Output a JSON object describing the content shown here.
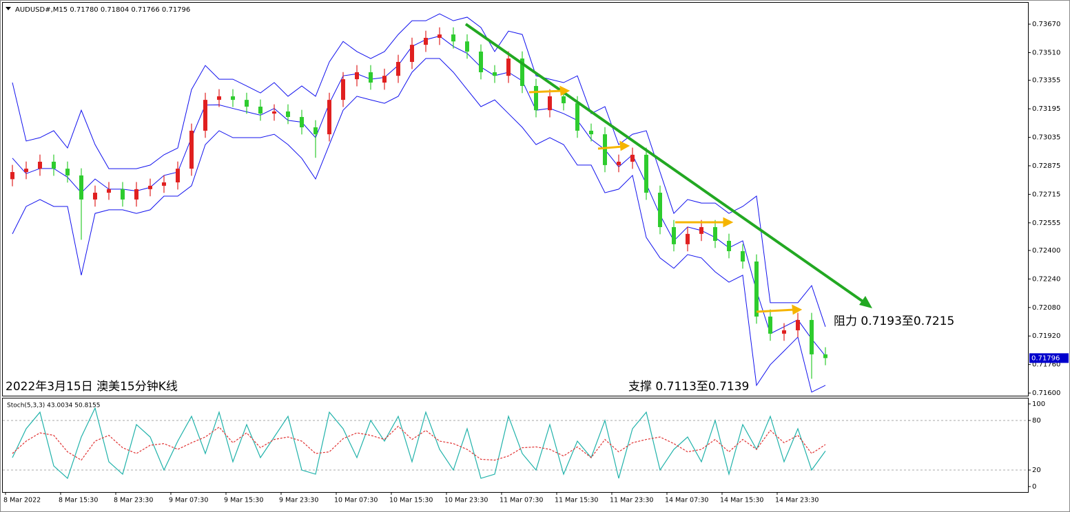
{
  "chart_data": [
    {
      "type": "candlestick",
      "title": "AUDUSD#,M15  0.71780 0.71804 0.71766 0.71796",
      "categories": [
        "8 Mar 2022",
        null,
        null,
        null,
        "8 Mar 15:30",
        null,
        null,
        null,
        "8 Mar 23:30",
        null,
        null,
        null,
        "9 Mar 07:30",
        null,
        null,
        null,
        "9 Mar 15:30",
        null,
        null,
        null,
        "9 Mar 23:30",
        null,
        null,
        null,
        "10 Mar 07:30",
        null,
        null,
        null,
        "10 Mar 15:30",
        null,
        null,
        null,
        "10 Mar 23:30",
        null,
        null,
        null,
        "11 Mar 07:30",
        null,
        null,
        null,
        "11 Mar 15:30",
        null,
        null,
        null,
        "11 Mar 23:30",
        null,
        null,
        null,
        "14 Mar 07:30",
        null,
        null,
        null,
        "14 Mar 15:30",
        null,
        null,
        null,
        "14 Mar 23:30",
        null,
        null,
        null
      ],
      "open": [
        0.728,
        0.7284,
        0.72859,
        0.72898,
        0.72859,
        0.72821,
        0.72686,
        0.72724,
        0.72744,
        0.72686,
        0.72744,
        0.72763,
        0.72782,
        0.72859,
        0.73072,
        0.73245,
        0.73265,
        0.73245,
        0.73207,
        0.73168,
        0.7318,
        0.73149,
        0.73091,
        0.73052,
        0.73245,
        0.73361,
        0.734,
        0.73342,
        0.7338,
        0.73458,
        0.73554,
        0.73593,
        0.73612,
        0.73573,
        0.73516,
        0.734,
        0.7338,
        0.73477,
        0.73323,
        0.73187,
        0.73265,
        0.73226,
        0.73072,
        0.73052,
        0.72879,
        0.72898,
        0.72937,
        0.72724,
        0.72531,
        0.72435,
        0.72493,
        0.72531,
        0.72454,
        0.72396,
        0.72338,
        0.72029,
        0.71933,
        0.71952,
        0.7201,
        0.71817
      ],
      "high": [
        0.7288,
        0.72899,
        0.72938,
        0.72938,
        0.72899,
        0.72861,
        0.72764,
        0.72784,
        0.72784,
        0.72784,
        0.72803,
        0.72822,
        0.72899,
        0.73112,
        0.73285,
        0.73305,
        0.73305,
        0.73285,
        0.73247,
        0.7322,
        0.7322,
        0.73189,
        0.73131,
        0.73285,
        0.73401,
        0.7344,
        0.7344,
        0.7342,
        0.73498,
        0.73594,
        0.73633,
        0.73652,
        0.73652,
        0.73613,
        0.73556,
        0.7344,
        0.73517,
        0.73517,
        0.73363,
        0.73305,
        0.73305,
        0.73266,
        0.73112,
        0.73092,
        0.72938,
        0.72977,
        0.72977,
        0.72764,
        0.72571,
        0.72533,
        0.72571,
        0.72571,
        0.72494,
        0.72436,
        0.72378,
        0.72069,
        0.71992,
        0.7205,
        0.7205,
        0.71857
      ],
      "low": [
        0.7276,
        0.728,
        0.72819,
        0.72819,
        0.72781,
        0.7246,
        0.72646,
        0.72684,
        0.72646,
        0.72646,
        0.72704,
        0.72723,
        0.72742,
        0.72819,
        0.73032,
        0.73205,
        0.73205,
        0.73167,
        0.73128,
        0.73128,
        0.73109,
        0.73051,
        0.7292,
        0.73012,
        0.73205,
        0.73321,
        0.73302,
        0.73302,
        0.7334,
        0.73418,
        0.73514,
        0.73553,
        0.73533,
        0.73476,
        0.7336,
        0.7334,
        0.7334,
        0.73283,
        0.73147,
        0.73147,
        0.73186,
        0.73032,
        0.73012,
        0.72839,
        0.72839,
        0.72858,
        0.72684,
        0.72491,
        0.72395,
        0.72395,
        0.72453,
        0.72414,
        0.72356,
        0.72298,
        0.71989,
        0.71893,
        0.71893,
        0.71912,
        0.7168,
        0.71756
      ],
      "close": [
        0.7284,
        0.72859,
        0.72898,
        0.72859,
        0.72821,
        0.72686,
        0.72724,
        0.72744,
        0.72686,
        0.72744,
        0.72763,
        0.72782,
        0.72859,
        0.73072,
        0.73245,
        0.73265,
        0.73245,
        0.73207,
        0.73168,
        0.7318,
        0.73149,
        0.73091,
        0.73052,
        0.73245,
        0.73361,
        0.734,
        0.73342,
        0.7338,
        0.73458,
        0.73554,
        0.73593,
        0.73612,
        0.73573,
        0.73516,
        0.734,
        0.7338,
        0.73477,
        0.73323,
        0.73187,
        0.73265,
        0.73226,
        0.73072,
        0.73052,
        0.72879,
        0.72898,
        0.72937,
        0.72724,
        0.72531,
        0.72435,
        0.72493,
        0.72531,
        0.72454,
        0.72396,
        0.72338,
        0.72029,
        0.71933,
        0.71952,
        0.7201,
        0.71817,
        0.71796
      ],
      "up_color": "#e02020",
      "down_color": "#2ecc2e",
      "bollinger": {
        "color": "#1010ee",
        "upper": [
          0.73342,
          0.73014,
          0.73033,
          0.73072,
          0.72975,
          0.73187,
          0.72994,
          0.72859,
          0.72859,
          0.72859,
          0.72879,
          0.72937,
          0.72975,
          0.73303,
          0.73438,
          0.73361,
          0.73361,
          0.73323,
          0.73284,
          0.73342,
          0.73265,
          0.73323,
          0.73265,
          0.73458,
          0.73573,
          0.73516,
          0.73477,
          0.73516,
          0.73612,
          0.73689,
          0.73689,
          0.73728,
          0.73689,
          0.73709,
          0.73651,
          0.73516,
          0.73631,
          0.73612,
          0.7338,
          0.73361,
          0.73342,
          0.7338,
          0.73168,
          0.73207,
          0.72994,
          0.73052,
          0.73072,
          0.7284,
          0.72608,
          0.72686,
          0.72666,
          0.72666,
          0.72608,
          0.72647,
          0.72705,
          0.72107,
          0.72107,
          0.72107,
          0.72203,
          0.71972
        ],
        "middle": [
          0.72918,
          0.72831,
          0.7286,
          0.7286,
          0.72811,
          0.72724,
          0.72801,
          0.72744,
          0.72744,
          0.72734,
          0.72754,
          0.72821,
          0.7284,
          0.73033,
          0.73216,
          0.73217,
          0.73197,
          0.73178,
          0.73159,
          0.73197,
          0.7313,
          0.7312,
          0.73033,
          0.73226,
          0.7338,
          0.73391,
          0.73361,
          0.73371,
          0.73439,
          0.73545,
          0.73583,
          0.73603,
          0.73545,
          0.73506,
          0.73429,
          0.73381,
          0.734,
          0.73352,
          0.73187,
          0.73197,
          0.73168,
          0.7313,
          0.73024,
          0.72966,
          0.72869,
          0.72937,
          0.72773,
          0.72599,
          0.72454,
          0.72532,
          0.72512,
          0.72473,
          0.72415,
          0.72454,
          0.72174,
          0.71933,
          0.71972,
          0.72011,
          0.71904,
          0.71808
        ],
        "lower": [
          0.72493,
          0.72647,
          0.72686,
          0.72647,
          0.72647,
          0.72261,
          0.72608,
          0.72628,
          0.72628,
          0.72608,
          0.72628,
          0.72705,
          0.72705,
          0.72763,
          0.72994,
          0.73072,
          0.73033,
          0.73033,
          0.73033,
          0.73052,
          0.72994,
          0.72917,
          0.72801,
          0.72994,
          0.73187,
          0.73265,
          0.73245,
          0.73226,
          0.73265,
          0.734,
          0.73477,
          0.73477,
          0.734,
          0.73303,
          0.73207,
          0.73245,
          0.73168,
          0.73091,
          0.72994,
          0.73033,
          0.72994,
          0.72879,
          0.72879,
          0.72724,
          0.72744,
          0.72821,
          0.72473,
          0.72358,
          0.723,
          0.72377,
          0.72358,
          0.7228,
          0.72222,
          0.72261,
          0.71643,
          0.71759,
          0.71836,
          0.71914,
          0.71605,
          0.71643
        ]
      },
      "ylim": [
        0.71585,
        0.7379
      ],
      "yticks": [
        {
          "value": 0.7367,
          "label": "0.73670"
        },
        {
          "value": 0.7351,
          "label": "0.73510"
        },
        {
          "value": 0.73355,
          "label": "0.73355"
        },
        {
          "value": 0.73195,
          "label": "0.73195"
        },
        {
          "value": 0.73035,
          "label": "0.73035"
        },
        {
          "value": 0.72875,
          "label": "0.72875"
        },
        {
          "value": 0.72715,
          "label": "0.72715"
        },
        {
          "value": 0.72555,
          "label": "0.72555"
        },
        {
          "value": 0.724,
          "label": "0.72400"
        },
        {
          "value": 0.7224,
          "label": "0.72240"
        },
        {
          "value": 0.7208,
          "label": "0.72080"
        },
        {
          "value": 0.7192,
          "label": "0.71920"
        },
        {
          "value": 0.7176,
          "label": "0.71760"
        },
        {
          "value": 0.716,
          "label": "0.71600"
        }
      ],
      "last_price": {
        "value": 0.71796,
        "label": "0.71796"
      },
      "annotations": [
        "2022年3月15日 澳美15分钟K线",
        "支撑 0.7113至0.7139",
        "阻力 0.7193至0.7215"
      ]
    },
    {
      "type": "line",
      "title": "Stoch(5,3,3) 43.0034 50.8155",
      "series": [
        {
          "color": "#20b2aa",
          "values": [
            35,
            70,
            90,
            25,
            10,
            60,
            95,
            30,
            15,
            75,
            60,
            20,
            55,
            85,
            40,
            90,
            30,
            75,
            35,
            60,
            85,
            20,
            15,
            90,
            70,
            35,
            80,
            55,
            85,
            30,
            90,
            45,
            20,
            70,
            10,
            15,
            85,
            40,
            20,
            75,
            15,
            55,
            35,
            80,
            10,
            70,
            90,
            20,
            45,
            60,
            30,
            80,
            15,
            75,
            45,
            85,
            30,
            70,
            20,
            43.0034
          ]
        },
        {
          "color": "#e03030",
          "dashed": true,
          "values": [
            40,
            55,
            65,
            62,
            42,
            32,
            55,
            62,
            47,
            40,
            50,
            52,
            45,
            53,
            60,
            72,
            53,
            65,
            47,
            57,
            60,
            55,
            40,
            42,
            58,
            65,
            62,
            57,
            73,
            57,
            68,
            55,
            52,
            45,
            33,
            32,
            37,
            47,
            48,
            45,
            37,
            48,
            35,
            57,
            42,
            53,
            57,
            60,
            52,
            42,
            45,
            57,
            42,
            57,
            45,
            68,
            53,
            62,
            40,
            50.8155
          ]
        }
      ],
      "ylim": [
        -5.8,
        105.8
      ],
      "yticks": [
        0,
        20,
        80,
        100
      ],
      "levels": [
        20,
        80
      ]
    }
  ]
}
